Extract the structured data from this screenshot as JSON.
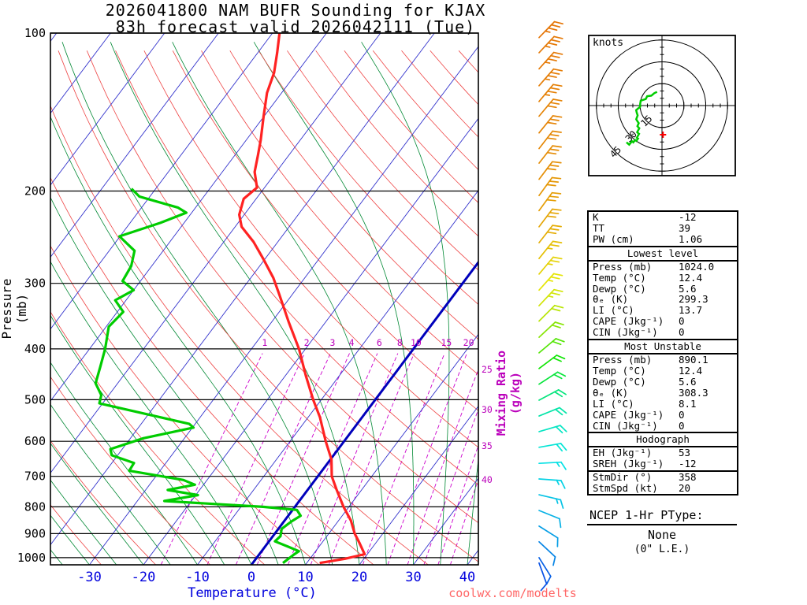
{
  "title": {
    "line1": "2026041800 NAM BUFR Sounding for KJAX",
    "line2": "83h forecast valid 2026042111 (Tue)"
  },
  "axes": {
    "pressure_label": "Pressure (mb)",
    "temperature_label": "Temperature (°C)",
    "mixing_ratio_label": "Mixing Ratio (g/kg)"
  },
  "watermark": "coolwx.com/modelts",
  "hodograph_panel": {
    "units": "knots",
    "rings": [
      15,
      30,
      45
    ],
    "storm_dir_deg": 358,
    "storm_speed_kt": 20
  },
  "stats": {
    "indices": [
      {
        "label": "K",
        "value": "-12"
      },
      {
        "label": "TT",
        "value": "39"
      },
      {
        "label": "PW (cm)",
        "value": "1.06"
      }
    ],
    "sections": [
      {
        "title": "Lowest level",
        "rows": [
          [
            "Press (mb)",
            "1024.0"
          ],
          [
            "Temp (°C)",
            "12.4"
          ],
          [
            "Dewp (°C)",
            "5.6"
          ],
          [
            "θₑ (K)",
            "299.3"
          ],
          [
            "LI (°C)",
            "13.7"
          ],
          [
            "CAPE (Jkg⁻¹)",
            "0"
          ],
          [
            "CIN (Jkg⁻¹)",
            "0"
          ]
        ]
      },
      {
        "title": "Most Unstable",
        "rows": [
          [
            "Press (mb)",
            "890.1"
          ],
          [
            "Temp (°C)",
            "12.4"
          ],
          [
            "Dewp (°C)",
            "5.6"
          ],
          [
            "θₑ (K)",
            "308.3"
          ],
          [
            "LI (°C)",
            "8.1"
          ],
          [
            "CAPE (Jkg⁻¹)",
            "0"
          ],
          [
            "CIN (Jkg⁻¹)",
            "0"
          ]
        ]
      },
      {
        "title": "Hodograph",
        "rows": [
          [
            "EH (Jkg⁻¹)",
            "53"
          ],
          [
            "SREH (Jkg⁻¹)",
            "-12"
          ]
        ],
        "rows2": [
          [
            "StmDir (°)",
            "358"
          ],
          [
            "StmSpd (kt)",
            "20"
          ]
        ]
      }
    ]
  },
  "ptype": {
    "title": "NCEP 1-Hr PType:",
    "value": "None",
    "note": "(0\" L.E.)"
  },
  "colors": {
    "isotherm": "#3333cc",
    "bold_isotherm": "#0000bb",
    "dry_adiabat": "#ee4444",
    "moist_adiabat": "#008833",
    "mixing_ratio": "#cc00cc",
    "temperature_curve": "#ff2222",
    "dewpoint_curve": "#00cc00",
    "axis_temperature_text": "#0000dd",
    "mixing_text": "#bb00bb",
    "watermark": "#ff6666",
    "hodograph_trace": "#00cc00",
    "storm_motion_marker": "#ff0000",
    "frame": "#000000"
  },
  "chart_data": {
    "type": "skewt_log_p",
    "station": "KJAX",
    "model": "NAM BUFR",
    "pressure_ticks_mb": [
      100,
      200,
      300,
      400,
      500,
      600,
      700,
      800,
      900,
      1000
    ],
    "pressure_top_mb": 100,
    "pressure_bottom_mb": 1032,
    "temperature_ticks_c": [
      -30,
      -20,
      -10,
      0,
      10,
      20,
      30,
      40
    ],
    "isotherm_step_c": 10,
    "bold_isotherm_c": 0,
    "dry_adiabat_theta_c": {
      "min": -40,
      "max": 200,
      "step": 10
    },
    "moist_adiabat_start_c": {
      "min": -40,
      "max": 40,
      "step": 5
    },
    "mixing_ratio_g_kg": [
      1,
      2,
      3,
      4,
      6,
      8,
      10,
      15,
      20,
      25,
      30,
      35,
      40
    ],
    "temperature_profile_p_t": [
      [
        100,
        -68.7
      ],
      [
        109,
        -66.4
      ],
      [
        119,
        -64.2
      ],
      [
        130,
        -62.7
      ],
      [
        144,
        -60.1
      ],
      [
        160,
        -57.3
      ],
      [
        171,
        -55.7
      ],
      [
        184,
        -54.0
      ],
      [
        197,
        -51.4
      ],
      [
        207,
        -52.3
      ],
      [
        222,
        -50.9
      ],
      [
        234,
        -48.8
      ],
      [
        250,
        -44.5
      ],
      [
        270,
        -40.2
      ],
      [
        293,
        -35.8
      ],
      [
        315,
        -32.4
      ],
      [
        355,
        -26.9
      ],
      [
        400,
        -21.2
      ],
      [
        450,
        -16.2
      ],
      [
        500,
        -11.5
      ],
      [
        540,
        -7.8
      ],
      [
        600,
        -3.4
      ],
      [
        650,
        0.2
      ],
      [
        700,
        2.6
      ],
      [
        740,
        5.2
      ],
      [
        800,
        9.0
      ],
      [
        850,
        12.3
      ],
      [
        900,
        14.8
      ],
      [
        938,
        17.0
      ],
      [
        985,
        19.5
      ],
      [
        1005,
        16.5
      ],
      [
        1024,
        12.4
      ]
    ],
    "dewpoint_profile_p_t": [
      [
        198,
        -74.5
      ],
      [
        205,
        -71.9
      ],
      [
        215,
        -63.3
      ],
      [
        220,
        -61.0
      ],
      [
        230,
        -64.4
      ],
      [
        244,
        -70.1
      ],
      [
        260,
        -65.3
      ],
      [
        278,
        -63.8
      ],
      [
        297,
        -63.3
      ],
      [
        309,
        -60.0
      ],
      [
        323,
        -62.0
      ],
      [
        340,
        -58.9
      ],
      [
        363,
        -59.5
      ],
      [
        400,
        -57.1
      ],
      [
        433,
        -55.5
      ],
      [
        465,
        -54.1
      ],
      [
        490,
        -51.4
      ],
      [
        508,
        -50.6
      ],
      [
        556,
        -31.1
      ],
      [
        565,
        -29.8
      ],
      [
        592,
        -37.6
      ],
      [
        621,
        -42.2
      ],
      [
        638,
        -41.1
      ],
      [
        660,
        -35.9
      ],
      [
        683,
        -35.7
      ],
      [
        711,
        -24.4
      ],
      [
        726,
        -21.6
      ],
      [
        743,
        -25.9
      ],
      [
        760,
        -19.6
      ],
      [
        780,
        -25.0
      ],
      [
        800,
        -5.9
      ],
      [
        811,
        0.8
      ],
      [
        832,
        2.3
      ],
      [
        853,
        1.4
      ],
      [
        881,
        0.6
      ],
      [
        910,
        1.4
      ],
      [
        931,
        1.1
      ],
      [
        953,
        4.3
      ],
      [
        972,
        6.9
      ],
      [
        985,
        6.5
      ],
      [
        1024,
        5.6
      ]
    ],
    "winds_p_dir_spd": [
      [
        102,
        44,
        35
      ],
      [
        109,
        43,
        35
      ],
      [
        117,
        42,
        35
      ],
      [
        126,
        41,
        35
      ],
      [
        135,
        40,
        35
      ],
      [
        144,
        40,
        32
      ],
      [
        155,
        39,
        32
      ],
      [
        166,
        38,
        32
      ],
      [
        177,
        38,
        30
      ],
      [
        190,
        37,
        30
      ],
      [
        204,
        36,
        30
      ],
      [
        218,
        36,
        28
      ],
      [
        234,
        37,
        28
      ],
      [
        251,
        38,
        28
      ],
      [
        269,
        39,
        25
      ],
      [
        288,
        40,
        25
      ],
      [
        309,
        42,
        25
      ],
      [
        331,
        43,
        25
      ],
      [
        354,
        45,
        22
      ],
      [
        380,
        47,
        22
      ],
      [
        407,
        50,
        22
      ],
      [
        436,
        53,
        20
      ],
      [
        467,
        57,
        20
      ],
      [
        501,
        62,
        20
      ],
      [
        537,
        68,
        18
      ],
      [
        575,
        74,
        18
      ],
      [
        616,
        80,
        18
      ],
      [
        661,
        87,
        15
      ],
      [
        708,
        94,
        15
      ],
      [
        759,
        103,
        15
      ],
      [
        813,
        112,
        12
      ],
      [
        871,
        122,
        12
      ],
      [
        933,
        133,
        10
      ],
      [
        1000,
        148,
        10
      ],
      [
        1024,
        160,
        10
      ]
    ]
  }
}
